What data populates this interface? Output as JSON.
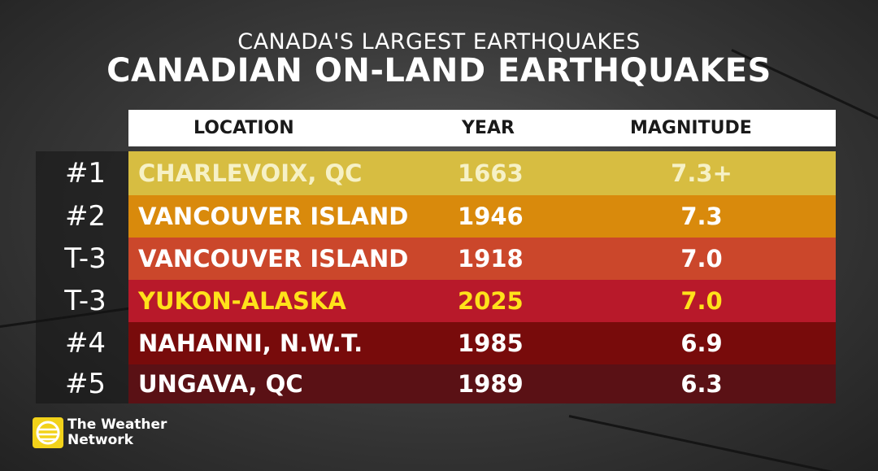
{
  "header": {
    "subtitle": "CANADA'S LARGEST EARTHQUAKES",
    "title": "CANADIAN ON-LAND EARTHQUAKES"
  },
  "table": {
    "columns": [
      "LOCATION",
      "YEAR",
      "MAGNITUDE"
    ],
    "rows": [
      [
        "#1",
        "CHARLEVOIX, QC",
        "1663",
        "7.3+"
      ],
      [
        "#2",
        "VANCOUVER ISLAND",
        "1946",
        "7.3"
      ],
      [
        "T-3",
        "VANCOUVER ISLAND",
        "1918",
        "7.0"
      ],
      [
        "T-3",
        "YUKON-ALASKA",
        "2025",
        "7.0"
      ],
      [
        "#4",
        "NAHANNI, N.W.T.",
        "1985",
        "6.9"
      ],
      [
        "#5",
        "UNGAVA, QC",
        "1989",
        "6.3"
      ]
    ]
  },
  "logo": {
    "line1": "The Weather",
    "line2": "Network"
  }
}
